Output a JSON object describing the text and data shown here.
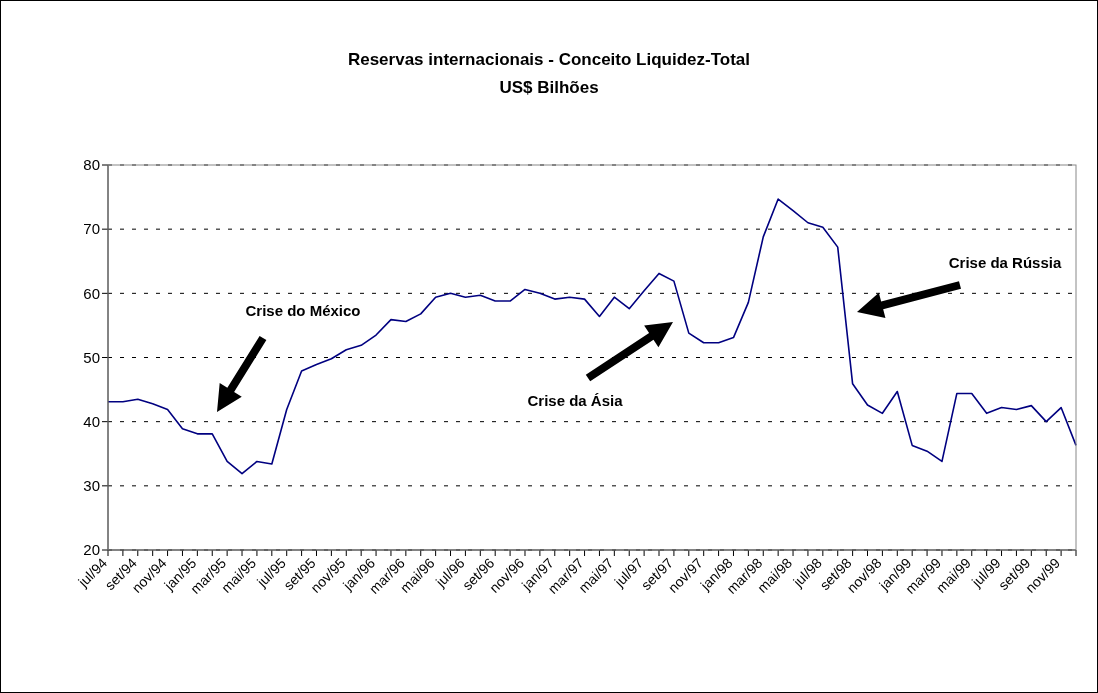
{
  "chart_data": {
    "type": "line",
    "title": "Reservas internacionais - Conceito Liquidez-Total",
    "subtitle": "US$ Bilhões",
    "categories": [
      "jul/94",
      null,
      "set/94",
      null,
      "nov/94",
      null,
      "jan/95",
      null,
      "mar/95",
      null,
      "mai/95",
      null,
      "jul/95",
      null,
      "set/95",
      null,
      "nov/95",
      null,
      "jan/96",
      null,
      "mar/96",
      null,
      "mai/96",
      null,
      "jul/96",
      null,
      "set/96",
      null,
      "nov/96",
      null,
      "jan/97",
      null,
      "mar/97",
      null,
      "mai/97",
      null,
      "jul/97",
      null,
      "set/97",
      null,
      "nov/97",
      null,
      "jan/98",
      null,
      "mar/98",
      null,
      "mai/98",
      null,
      "jul/98",
      null,
      "set/98",
      null,
      "nov/98",
      null,
      "jan/99",
      null,
      "mar/99",
      null,
      "mai/99",
      null,
      "jul/99",
      null,
      "set/99",
      null,
      "nov/99",
      null
    ],
    "series": [
      {
        "color": "#000080",
        "values": [
          43.1,
          43.1,
          43.5,
          42.8,
          41.9,
          38.9,
          38.1,
          38.1,
          33.8,
          31.9,
          33.8,
          33.4,
          41.9,
          47.9,
          48.9,
          49.8,
          51.2,
          51.9,
          53.5,
          55.9,
          55.6,
          56.8,
          59.4,
          60.0,
          59.4,
          59.7,
          58.8,
          58.8,
          60.6,
          60.0,
          59.1,
          59.4,
          59.1,
          56.4,
          59.4,
          57.6,
          60.4,
          63.1,
          61.9,
          53.8,
          52.3,
          52.3,
          53.1,
          58.6,
          68.8,
          74.7,
          72.9,
          71.0,
          70.3,
          67.2,
          45.9,
          42.6,
          41.3,
          44.7,
          36.3,
          35.4,
          33.8,
          44.4,
          44.4,
          41.3,
          42.2,
          41.9,
          42.5,
          40.0,
          42.2,
          36.3
        ]
      }
    ],
    "ylim": [
      20,
      80
    ],
    "yticks": [
      20,
      30,
      40,
      50,
      60,
      70,
      80
    ],
    "grid": "y",
    "legend": false,
    "marker": "none",
    "line_style": "solid",
    "annotations": [
      "Crise do México",
      "Crise da Ásia",
      "Crise da Rússia"
    ]
  }
}
